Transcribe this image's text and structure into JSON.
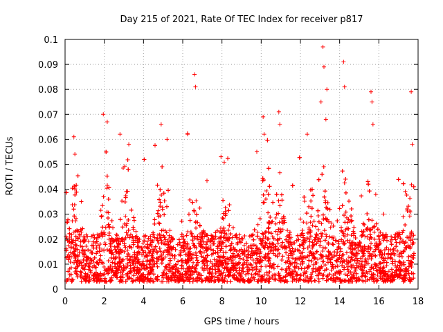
{
  "chart_data": {
    "type": "scatter",
    "title": "Day 215 of 2021, Rate Of TEC Index for receiver p817",
    "xlabel": "GPS time / hours",
    "ylabel": "ROTI / TECUs",
    "xlim": [
      0,
      18
    ],
    "ylim": [
      0,
      0.1
    ],
    "grid": true,
    "marker": "+",
    "color": "#ff0000",
    "x_ticks": [
      0,
      2,
      4,
      6,
      8,
      10,
      12,
      14,
      16,
      18
    ],
    "x_tick_labels": [
      "0",
      "2",
      "4",
      "6",
      "8",
      "10",
      "12",
      "14",
      "16",
      "18"
    ],
    "y_ticks": [
      0,
      0.01,
      0.02,
      0.03,
      0.04,
      0.05,
      0.06,
      0.07,
      0.08,
      0.09,
      0.1
    ],
    "y_tick_labels": [
      "0",
      "0.01",
      "0.02",
      "0.03",
      "0.04",
      "0.05",
      "0.06",
      "0.07",
      "0.08",
      "0.09",
      "0.1"
    ],
    "highlight_points": [
      {
        "x": 0.45,
        "y": 0.061
      },
      {
        "x": 0.5,
        "y": 0.054
      },
      {
        "x": 1.95,
        "y": 0.07
      },
      {
        "x": 2.15,
        "y": 0.067
      },
      {
        "x": 2.8,
        "y": 0.062
      },
      {
        "x": 3.25,
        "y": 0.058
      },
      {
        "x": 4.9,
        "y": 0.066
      },
      {
        "x": 5.2,
        "y": 0.06
      },
      {
        "x": 6.25,
        "y": 0.062
      },
      {
        "x": 6.6,
        "y": 0.086
      },
      {
        "x": 6.65,
        "y": 0.081
      },
      {
        "x": 7.95,
        "y": 0.053
      },
      {
        "x": 10.1,
        "y": 0.069
      },
      {
        "x": 10.15,
        "y": 0.062
      },
      {
        "x": 10.9,
        "y": 0.071
      },
      {
        "x": 10.95,
        "y": 0.066
      },
      {
        "x": 12.35,
        "y": 0.062
      },
      {
        "x": 13.05,
        "y": 0.075
      },
      {
        "x": 13.15,
        "y": 0.097
      },
      {
        "x": 13.2,
        "y": 0.089
      },
      {
        "x": 13.35,
        "y": 0.08
      },
      {
        "x": 13.3,
        "y": 0.068
      },
      {
        "x": 14.2,
        "y": 0.091
      },
      {
        "x": 14.25,
        "y": 0.081
      },
      {
        "x": 15.6,
        "y": 0.079
      },
      {
        "x": 15.65,
        "y": 0.075
      },
      {
        "x": 15.7,
        "y": 0.066
      },
      {
        "x": 17.65,
        "y": 0.079
      },
      {
        "x": 17.7,
        "y": 0.058
      }
    ],
    "generated_series": {
      "description": "Dense noisy ROTI samples across 0-17.8 h, mostly 0.003-0.03 TECU with spikes",
      "x_start": 0.05,
      "x_end": 17.8,
      "count": 6000,
      "base_min": 0.003,
      "base_max": 0.022,
      "activity_peaks": [
        {
          "x": 0.4,
          "amp": 0.03
        },
        {
          "x": 2.1,
          "amp": 0.035
        },
        {
          "x": 3.2,
          "amp": 0.03
        },
        {
          "x": 4.9,
          "amp": 0.03
        },
        {
          "x": 6.6,
          "amp": 0.025
        },
        {
          "x": 8.2,
          "amp": 0.02
        },
        {
          "x": 10.2,
          "amp": 0.03
        },
        {
          "x": 11.0,
          "amp": 0.03
        },
        {
          "x": 12.4,
          "amp": 0.03
        },
        {
          "x": 13.2,
          "amp": 0.035
        },
        {
          "x": 14.3,
          "amp": 0.03
        },
        {
          "x": 15.6,
          "amp": 0.03
        },
        {
          "x": 17.5,
          "amp": 0.025
        }
      ]
    }
  }
}
